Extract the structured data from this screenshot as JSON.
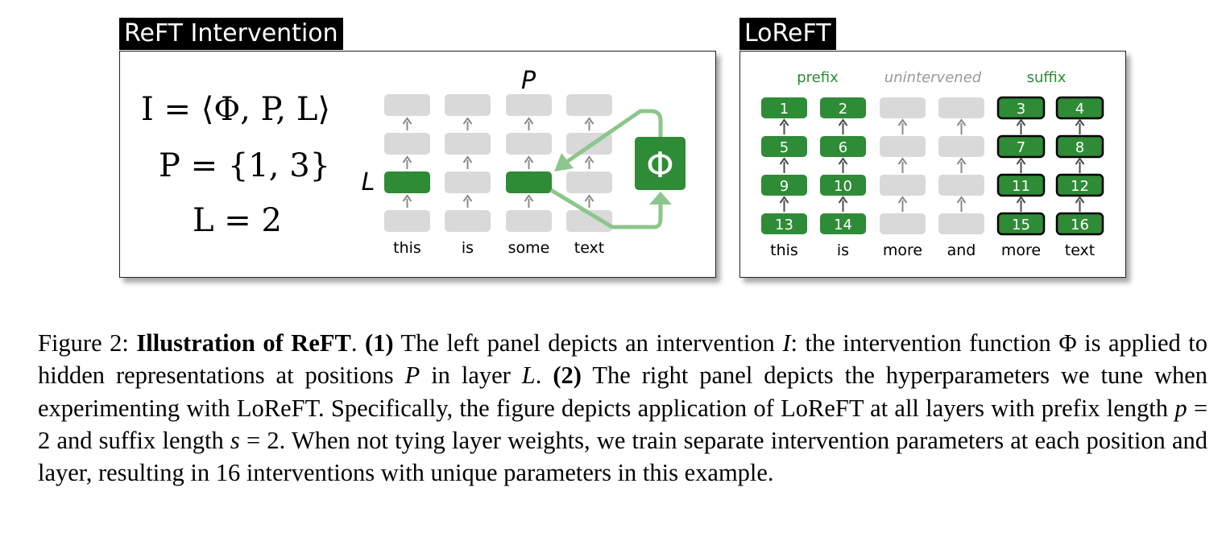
{
  "left_panel": {
    "tab_title": "ReFT Intervention",
    "eq_I": "I = ⟨Φ, P, L⟩",
    "eq_P": "P = {1, 3}",
    "eq_L": "L = 2",
    "label_P": "P",
    "label_L": "L",
    "phi_symbol": "Φ",
    "tokens": [
      "this",
      "is",
      "some",
      "text"
    ],
    "intervened_positions": [
      1,
      3
    ],
    "intervened_layer": 2,
    "num_layers": 4
  },
  "right_panel": {
    "tab_title": "LoReFT",
    "group_labels": {
      "prefix": "prefix",
      "unintervened": "unintervened",
      "suffix": "suffix"
    },
    "tokens": [
      "this",
      "is",
      "more",
      "and",
      "more",
      "text"
    ],
    "cells": [
      [
        "1",
        "2",
        "",
        "",
        "3",
        "4"
      ],
      [
        "5",
        "6",
        "",
        "",
        "7",
        "8"
      ],
      [
        "9",
        "10",
        "",
        "",
        "11",
        "12"
      ],
      [
        "13",
        "14",
        "",
        "",
        "15",
        "16"
      ]
    ],
    "prefix_length": 2,
    "suffix_length": 2
  },
  "caption": {
    "figure_label": "Figure 2:",
    "bold_title": "Illustration of ReFT",
    "p1_num": "(1)",
    "p1_a": "The left panel depicts an intervention",
    "sym_I": "I",
    "p1_b": ": the intervention function Φ is applied to hidden representations at positions",
    "sym_P": "P",
    "p1_c": "in layer",
    "sym_L": "L",
    "p2_num": "(2)",
    "p2_a": "The right panel depicts the hyperparameters we tune when experimenting with LoReFT. Specifically, the figure depicts application of LoReFT at all layers with prefix length",
    "sym_p": "p",
    "eq_val_p": "= 2",
    "p2_b": "and suffix length",
    "sym_s": "s",
    "eq_val_s": "= 2",
    "p2_c": ". When not tying layer weights, we train separate intervention parameters at each position and layer, resulting in 16 interventions with unique parameters in this example."
  },
  "colors": {
    "green_dark": "#2e8b36",
    "green_light": "#8cc68c",
    "gray_box": "#d9d9d9",
    "arrow_gray": "#8a8a8a",
    "prefix_label": "#2e8b36",
    "unintervened_label": "#9a9a9a"
  }
}
